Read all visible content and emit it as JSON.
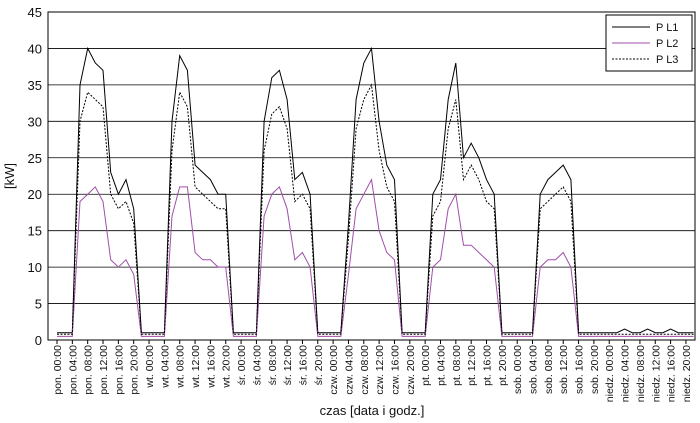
{
  "chart_data": {
    "type": "line",
    "ylabel": "[kW]",
    "xlabel": "czas [data i godz.]",
    "categories": [
      "pon. 00:00",
      null,
      "pon. 04:00",
      null,
      "pon. 08:00",
      null,
      "pon. 12:00",
      null,
      "pon. 16:00",
      null,
      "pon. 20:00",
      null,
      "wt. 00:00",
      null,
      "wt. 04:00",
      null,
      "wt. 08:00",
      null,
      "wt. 12:00",
      null,
      "wt. 16:00",
      null,
      "wt. 20:00",
      null,
      "śr. 00:00",
      null,
      "śr. 04:00",
      null,
      "śr. 08:00",
      null,
      "śr. 12:00",
      null,
      "śr. 16:00",
      null,
      "śr. 20:00",
      null,
      "czw. 00:00",
      null,
      "czw. 04:00",
      null,
      "czw. 08:00",
      null,
      "czw. 12:00",
      null,
      "czw. 16:00",
      null,
      "czw. 20:00",
      null,
      "pt. 00:00",
      null,
      "pt. 04:00",
      null,
      "pt. 08:00",
      null,
      "pt. 12:00",
      null,
      "pt. 16:00",
      null,
      "pt. 20:00",
      null,
      "sob. 00:00",
      null,
      "sob. 04:00",
      null,
      "sob. 08:00",
      null,
      "sob. 12:00",
      null,
      "sob. 16:00",
      null,
      "sob. 20:00",
      null,
      "niedz. 00:00",
      null,
      "niedz. 04:00",
      null,
      "niedz. 08:00",
      null,
      "niedz. 12:00",
      null,
      "niedz. 16:00",
      null,
      "niedz. 20:00",
      null
    ],
    "series": [
      {
        "name": "P L1",
        "color": "#000000",
        "style": "solid",
        "values": [
          1,
          1,
          1,
          35,
          40,
          38,
          37,
          23,
          20,
          22,
          18,
          1,
          1,
          1,
          1,
          30,
          39,
          37,
          24,
          23,
          22,
          20,
          20,
          1,
          1,
          1,
          1,
          30,
          36,
          37,
          33,
          22,
          23,
          20,
          1,
          1,
          1,
          1,
          16,
          33,
          38,
          40,
          30,
          24,
          22,
          1,
          1,
          1,
          1,
          20,
          22,
          33,
          38,
          25,
          27,
          25,
          22,
          20,
          1,
          1,
          1,
          1,
          1,
          20,
          22,
          23,
          24,
          22,
          1,
          1,
          1,
          1,
          1,
          1,
          1.5,
          1,
          1,
          1.5,
          1,
          1,
          1.5,
          1,
          1,
          1
        ]
      },
      {
        "name": "P L2",
        "color": "#a04ea8",
        "style": "solid",
        "values": [
          0.5,
          0.5,
          0.5,
          19,
          20,
          21,
          19,
          11,
          10,
          11,
          9,
          0.5,
          0.5,
          0.5,
          0.5,
          17,
          21,
          21,
          12,
          11,
          11,
          10,
          10,
          0.5,
          0.5,
          0.5,
          0.5,
          17,
          20,
          21,
          18,
          11,
          12,
          10,
          0.5,
          0.5,
          0.5,
          0.5,
          9,
          18,
          20,
          22,
          15,
          12,
          11,
          0.5,
          0.5,
          0.5,
          0.5,
          10,
          11,
          18,
          20,
          13,
          13,
          12,
          11,
          10,
          0.5,
          0.5,
          0.5,
          0.5,
          0.5,
          10,
          11,
          11,
          12,
          10,
          0.5,
          0.5,
          0.5,
          0.5,
          0.5,
          0.5,
          0.5,
          0.5,
          0.5,
          0.5,
          0.5,
          0.5,
          0.5,
          0.5,
          0.5,
          0.5
        ]
      },
      {
        "name": "P L3",
        "color": "#000000",
        "style": "dotted",
        "values": [
          0.8,
          0.8,
          0.8,
          30,
          34,
          33,
          32,
          20,
          18,
          19,
          16,
          0.8,
          0.8,
          0.8,
          0.8,
          26,
          34,
          32,
          21,
          20,
          19,
          18,
          18,
          0.8,
          0.8,
          0.8,
          0.8,
          26,
          31,
          32,
          29,
          19,
          20,
          18,
          0.8,
          0.8,
          0.8,
          0.8,
          14,
          29,
          33,
          35,
          26,
          21,
          19,
          0.8,
          0.8,
          0.8,
          0.8,
          17,
          19,
          29,
          33,
          22,
          24,
          22,
          19,
          18,
          0.8,
          0.8,
          0.8,
          0.8,
          0.8,
          18,
          19,
          20,
          21,
          19,
          0.8,
          0.8,
          0.8,
          0.8,
          0.8,
          0.8,
          0.8,
          0.8,
          0.8,
          0.8,
          0.8,
          0.8,
          0.8,
          0.8,
          0.8,
          0.8
        ]
      }
    ],
    "ylim": [
      0,
      45
    ],
    "yticks": [
      0,
      5,
      10,
      15,
      20,
      25,
      30,
      35,
      40,
      45
    ],
    "grid": true,
    "legend": "top-right"
  }
}
